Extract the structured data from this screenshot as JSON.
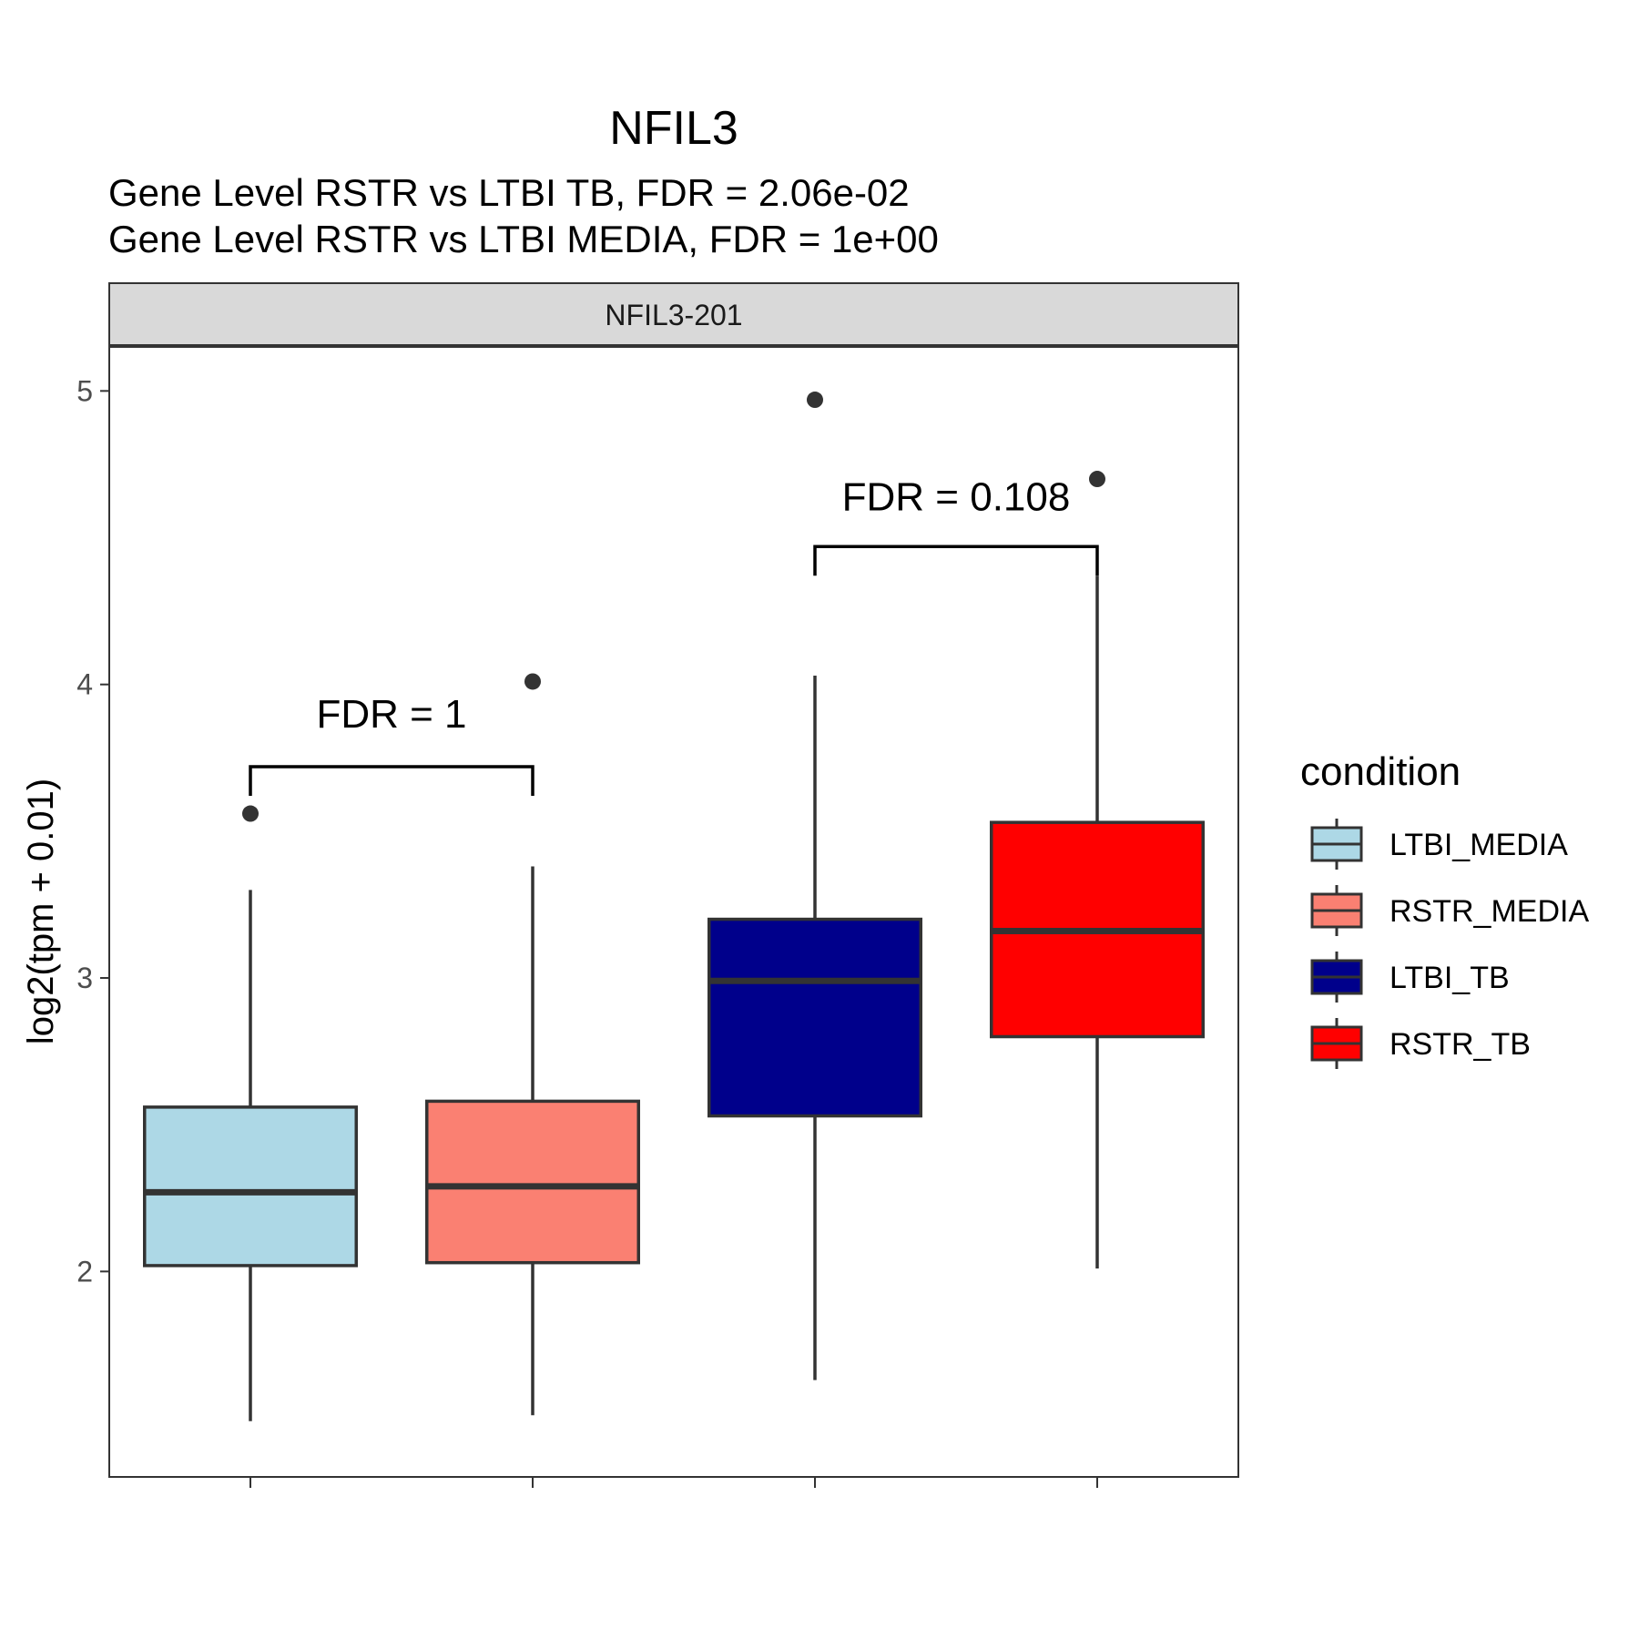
{
  "chart_data": {
    "type": "boxplot",
    "title": "NFIL3",
    "subtitle_lines": [
      "Gene Level RSTR vs LTBI TB, FDR =  2.06e-02",
      "Gene Level RSTR vs LTBI MEDIA, FDR =  1e+00"
    ],
    "facet_label": "NFIL3-201",
    "xlabel": "",
    "ylabel": "log2(tpm + 0.01)",
    "ylim": [
      1.3,
      5.15
    ],
    "y_ticks": [
      2,
      3,
      4,
      5
    ],
    "legend": {
      "title": "condition",
      "position": "right"
    },
    "grid": false,
    "series": [
      {
        "name": "LTBI_MEDIA",
        "color": "#ADD8E6",
        "whisker_low": 1.49,
        "q1": 2.02,
        "median": 2.27,
        "q3": 2.56,
        "whisker_high": 3.3,
        "outliers": [
          3.56
        ]
      },
      {
        "name": "RSTR_MEDIA",
        "color": "#FA8072",
        "whisker_low": 1.51,
        "q1": 2.03,
        "median": 2.29,
        "q3": 2.58,
        "whisker_high": 3.38,
        "outliers": [
          4.01
        ]
      },
      {
        "name": "LTBI_TB",
        "color": "#00008B",
        "whisker_low": 1.63,
        "q1": 2.53,
        "median": 2.99,
        "q3": 3.2,
        "whisker_high": 4.03,
        "outliers": [
          4.97
        ]
      },
      {
        "name": "RSTR_TB",
        "color": "#FF0000",
        "whisker_low": 2.01,
        "q1": 2.8,
        "median": 3.16,
        "q3": 3.53,
        "whisker_high": 4.37,
        "outliers": [
          4.7
        ]
      }
    ],
    "comparisons": [
      {
        "groups": [
          "LTBI_MEDIA",
          "RSTR_MEDIA"
        ],
        "label": "FDR =  1",
        "y": 3.72,
        "label_y": 3.9
      },
      {
        "groups": [
          "LTBI_TB",
          "RSTR_TB"
        ],
        "label": "FDR =  0.108",
        "y": 4.47,
        "label_y": 4.64
      }
    ]
  }
}
